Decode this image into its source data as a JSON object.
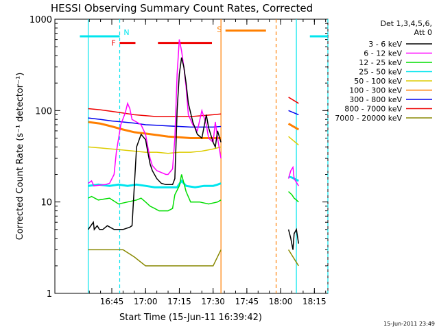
{
  "chart_data": {
    "type": "line",
    "title": "HESSI Observing Summary Count Rates, Corrected",
    "xlabel": "Start Time (15-Jun-11 16:39:42)",
    "ylabel": "Corrected Count Rate (s⁻¹ detector⁻¹)",
    "y_scale": "log",
    "xlim": [
      "16:39:42",
      "18:20"
    ],
    "ylim": [
      1,
      1000
    ],
    "x_tick_labels": [
      "16:45",
      "17:00",
      "17:15",
      "17:30",
      "17:45",
      "18:00",
      "18:15"
    ],
    "x_ticks_min": [
      1005,
      1020,
      1035,
      1050,
      1065,
      1080,
      1095
    ],
    "y_tick_labels": [
      "1",
      "10",
      "100",
      "1000"
    ],
    "y_ticks": [
      1,
      10,
      100,
      1000
    ],
    "legend_position": "right",
    "legend_header": [
      "Det 1,3,4,5,6,",
      "Att 0"
    ],
    "timestamp": "15-Jun-2011 23:49",
    "series": [
      {
        "name": "3 - 6 keV",
        "color": "#000000",
        "x": [
          994.5,
          996.8,
          997.2,
          998.5,
          999.5,
          1001,
          1003,
          1006,
          1010,
          1013,
          1014,
          1016,
          1018,
          1020,
          1021,
          1022,
          1023,
          1025,
          1027,
          1029,
          1030,
          1032,
          1033,
          1033.5,
          1034,
          1035,
          1036,
          1037,
          1038,
          1039,
          1041,
          1043,
          1045,
          1047,
          1048,
          1050,
          1051,
          1052,
          1053.5,
          1083.5,
          1084.5,
          1085.5,
          1086,
          1087,
          1088
        ],
        "y": [
          5,
          6,
          5,
          5.5,
          5,
          5,
          5.5,
          5,
          5,
          5.3,
          5.5,
          40,
          55,
          48,
          35,
          26,
          22,
          18,
          16,
          15.5,
          15.5,
          15.5,
          18,
          40,
          100,
          250,
          380,
          300,
          200,
          120,
          75,
          55,
          50,
          90,
          65,
          45,
          40,
          60,
          45,
          5,
          4,
          3,
          4.5,
          5,
          3.5
        ]
      },
      {
        "name": "6 - 12 keV",
        "color": "#ff00ff",
        "x": [
          994.5,
          996,
          997,
          1002,
          1004,
          1006,
          1007,
          1009,
          1011,
          1012,
          1013,
          1014,
          1016,
          1018,
          1020,
          1021,
          1022,
          1023,
          1025,
          1027,
          1029,
          1030,
          1032,
          1033,
          1033.5,
          1034,
          1035,
          1036,
          1037,
          1038,
          1039,
          1041,
          1043,
          1045,
          1047,
          1048,
          1050,
          1051,
          1052,
          1053.5,
          1083.5,
          1084.5,
          1085.5,
          1086,
          1088
        ],
        "y": [
          16,
          17,
          15,
          15.5,
          16,
          20,
          35,
          70,
          95,
          120,
          105,
          80,
          75,
          70,
          55,
          40,
          30,
          25,
          22,
          21,
          20,
          20,
          23,
          50,
          110,
          250,
          600,
          450,
          300,
          180,
          90,
          70,
          60,
          100,
          70,
          50,
          45,
          75,
          50,
          30,
          18,
          22,
          24,
          18,
          15
        ]
      },
      {
        "name": "12 - 25 keV",
        "color": "#00dd00",
        "x": [
          994.5,
          996,
          999,
          1004,
          1008,
          1012,
          1016,
          1018,
          1020,
          1022,
          1024,
          1026,
          1028,
          1030,
          1032,
          1033,
          1035,
          1036,
          1038,
          1040,
          1044,
          1048,
          1052,
          1053.5,
          1083.5,
          1085,
          1086,
          1087,
          1088
        ],
        "y": [
          11,
          11.5,
          10.5,
          11,
          9.5,
          10,
          10.5,
          11,
          10,
          9,
          8.5,
          8,
          8,
          8,
          8.5,
          12,
          15,
          20,
          13,
          10,
          10,
          9.5,
          10,
          10.5,
          13,
          12,
          11,
          10.5,
          10
        ]
      },
      {
        "name": "25 - 50 keV",
        "color": "#00e5ee",
        "x": [
          994.5,
          999,
          1004,
          1008,
          1012,
          1016,
          1020,
          1024,
          1028,
          1032,
          1034,
          1036,
          1038,
          1042,
          1046,
          1050,
          1052,
          1053.5,
          1083.5,
          1085,
          1086,
          1087,
          1088
        ],
        "y": [
          15,
          15.5,
          15,
          15.5,
          15,
          15.5,
          15,
          14.5,
          14.5,
          14.5,
          14.5,
          17,
          15,
          14.5,
          15,
          15,
          15.5,
          16,
          19,
          18.5,
          18,
          17.5,
          17
        ]
      },
      {
        "name": "50 - 100 keV",
        "color": "#ddcc00",
        "x": [
          994.5,
          1000,
          1005,
          1010,
          1015,
          1020,
          1025,
          1030,
          1035,
          1040,
          1045,
          1050,
          1053.5,
          1083.5,
          1088
        ],
        "y": [
          40,
          39,
          38,
          37,
          36,
          35,
          35,
          34,
          35,
          35,
          36,
          38,
          40,
          52,
          42
        ]
      },
      {
        "name": "100 - 300 keV",
        "color": "#ff7f00",
        "x": [
          994.5,
          1000,
          1005,
          1010,
          1015,
          1020,
          1025,
          1030,
          1035,
          1040,
          1045,
          1050,
          1053.5,
          1083.5,
          1088
        ],
        "y": [
          75,
          72,
          67,
          62,
          58,
          56,
          54,
          52,
          51,
          50,
          50,
          50,
          50,
          72,
          62
        ]
      },
      {
        "name": "300 - 800 keV",
        "color": "#0000ee",
        "x": [
          994.5,
          1000,
          1005,
          1010,
          1015,
          1020,
          1025,
          1030,
          1035,
          1040,
          1045,
          1050,
          1053.5,
          1083.5,
          1088
        ],
        "y": [
          83,
          80,
          77,
          75,
          73,
          70,
          69,
          68,
          67,
          66,
          66,
          66,
          67,
          100,
          90
        ]
      },
      {
        "name": "800 - 7000 keV",
        "color": "#ee0000",
        "x": [
          994.5,
          1000,
          1005,
          1010,
          1015,
          1020,
          1025,
          1030,
          1035,
          1040,
          1045,
          1050,
          1053.5,
          1083.5,
          1088
        ],
        "y": [
          105,
          102,
          98,
          94,
          90,
          88,
          86,
          86,
          86,
          86,
          88,
          90,
          92,
          140,
          120
        ]
      },
      {
        "name": "7000 - 20000 keV",
        "color": "#888800",
        "x": [
          994.5,
          1000,
          1005,
          1010,
          1015,
          1020,
          1025,
          1030,
          1035,
          1040,
          1045,
          1050,
          1053.5,
          1083.5,
          1088
        ],
        "y": [
          3,
          3,
          3,
          3,
          2.5,
          2,
          2,
          2,
          2,
          2,
          2,
          2,
          3,
          3,
          2
        ]
      }
    ],
    "annotations": [
      {
        "label": "F",
        "kind": "flare",
        "color": "#ee0000",
        "intervals": [
          [
            1008.5,
            1015.5
          ],
          [
            1025.5,
            1049.5
          ]
        ],
        "level": 550
      },
      {
        "label": "N",
        "kind": "night",
        "color": "#00e5ee",
        "boundaries": [
          1008.5
        ],
        "dashed": true
      },
      {
        "label": "S",
        "kind": "saa",
        "color": "#ff7f00",
        "intervals": [
          [
            1055.5,
            1073.5
          ]
        ],
        "level": 750
      },
      {
        "kind": "night-bar",
        "color": "#00e5ee",
        "intervals": [
          [
            990.8,
            1008.5
          ],
          [
            1093,
            1101
          ]
        ],
        "level": 650
      },
      {
        "kind": "night-line",
        "color": "#00e5ee",
        "boundaries": [
          994.5,
          1087
        ],
        "dashed": false
      },
      {
        "kind": "night-line",
        "color": "#00e5ee",
        "boundaries": [
          1101
        ],
        "dashed": true
      },
      {
        "kind": "saa-line",
        "color": "#ff7f00",
        "boundaries": [
          1053.5
        ],
        "dashed": false
      },
      {
        "kind": "saa-line",
        "color": "#ff7f00",
        "boundaries": [
          1078
        ],
        "dashed": true
      }
    ]
  }
}
